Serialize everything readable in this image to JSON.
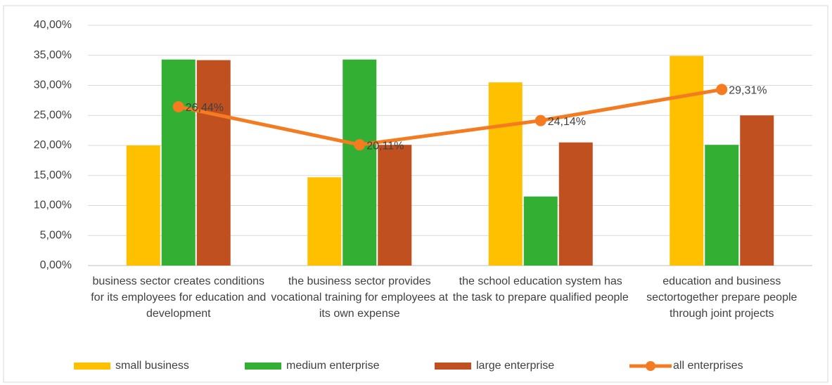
{
  "chart_data": {
    "type": "bar",
    "categories": [
      "business sector creates conditions for its employees for education and development",
      "the business sector provides vocational training for employees at its own expense",
      "the school education system has the task to prepare qualified people",
      "education and business sectortogether prepare people through joint projects"
    ],
    "series": [
      {
        "name": "small business",
        "color": "#ffc000",
        "values": [
          20.0,
          14.7,
          30.5,
          34.9
        ]
      },
      {
        "name": "medium enterprise",
        "color": "#33b034",
        "values": [
          34.3,
          34.3,
          11.5,
          20.1
        ]
      },
      {
        "name": "large enterprise",
        "color": "#c0501f",
        "values": [
          34.2,
          20.1,
          20.5,
          25.0
        ]
      },
      {
        "name": "all enterprises",
        "type": "line",
        "color": "#f47b20",
        "values": [
          26.44,
          20.11,
          24.14,
          29.31
        ],
        "value_labels": [
          "26,44%",
          "20,11%",
          "24,14%",
          "29,31%"
        ]
      }
    ],
    "ylim": [
      0,
      40
    ],
    "yticks": [
      {
        "value": 0,
        "label": "0,00%"
      },
      {
        "value": 5,
        "label": "5,00%"
      },
      {
        "value": 10,
        "label": "10,00%"
      },
      {
        "value": 15,
        "label": "15,00%"
      },
      {
        "value": 20,
        "label": "20,00%"
      },
      {
        "value": 25,
        "label": "25,00%"
      },
      {
        "value": 30,
        "label": "30,00%"
      },
      {
        "value": 35,
        "label": "35,00%"
      },
      {
        "value": 40,
        "label": "40,00%"
      }
    ],
    "grid": true,
    "legend": "bottom"
  }
}
